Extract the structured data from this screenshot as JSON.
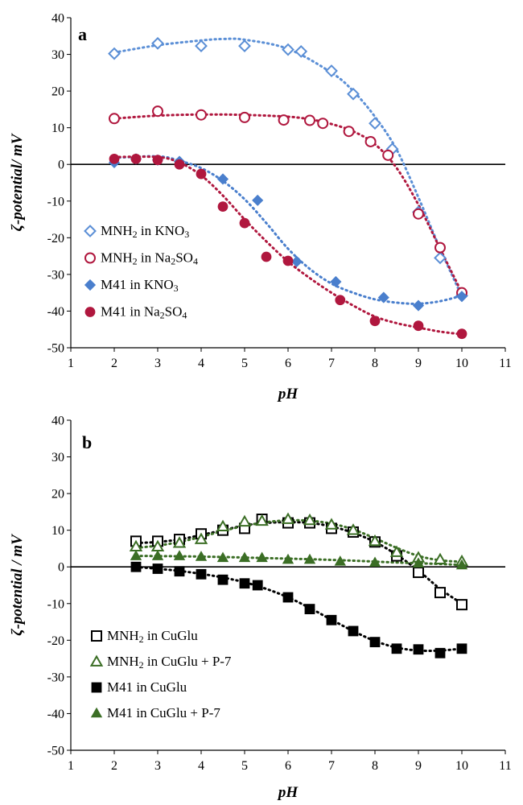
{
  "chart_data": [
    {
      "type": "scatter",
      "panel_label": "a",
      "xlabel": "pH",
      "ylabel": "ζ-potential/ mV",
      "xlim": [
        1,
        11
      ],
      "ylim": [
        -50,
        40
      ],
      "xticks": [
        1,
        2,
        3,
        4,
        5,
        6,
        7,
        8,
        9,
        10,
        11
      ],
      "yticks": [
        -50,
        -40,
        -30,
        -20,
        -10,
        0,
        10,
        20,
        30,
        40
      ],
      "grid": false,
      "legend_position": "bottom-left",
      "series": [
        {
          "name": "MNH2 in KNO3",
          "legend_parts": [
            {
              "t": "MNH"
            },
            {
              "t": "2",
              "sub": true
            },
            {
              "t": " in KNO"
            },
            {
              "t": "3",
              "sub": true
            }
          ],
          "color": "#5b8fd6",
          "marker": "diamond-open",
          "x": [
            2,
            3,
            4,
            5,
            6,
            6.3,
            7,
            7.5,
            8,
            8.4,
            9,
            9.5,
            10
          ],
          "y": [
            30.2,
            33,
            32.3,
            32.3,
            31.3,
            30.8,
            25.5,
            19.2,
            11.2,
            4.2,
            -13,
            -25.5,
            -35.8
          ],
          "trend": {
            "x": [
              2,
              3,
              4,
              4.5,
              5,
              6,
              7,
              7.5,
              8,
              8.5,
              9,
              9.5,
              10
            ],
            "y": [
              30.5,
              32.5,
              33.8,
              34.2,
              34,
              31.5,
              25,
              20,
              13,
              4,
              -9,
              -23,
              -36
            ]
          }
        },
        {
          "name": "MNH2 in Na2SO4",
          "legend_parts": [
            {
              "t": "MNH"
            },
            {
              "t": "2",
              "sub": true
            },
            {
              "t": " in Na"
            },
            {
              "t": "2",
              "sub": true
            },
            {
              "t": "SO"
            },
            {
              "t": "4",
              "sub": true
            }
          ],
          "color": "#b0173e",
          "marker": "circle-open",
          "x": [
            2,
            3,
            4,
            5,
            5.9,
            6.5,
            6.8,
            7.4,
            7.9,
            8.3,
            9,
            9.5,
            10
          ],
          "y": [
            12.5,
            14.5,
            13.5,
            12.8,
            12.1,
            12,
            11.2,
            9,
            6.2,
            2.5,
            -13.5,
            -22.7,
            -35
          ],
          "trend": {
            "x": [
              2,
              3,
              4,
              5,
              6,
              6.5,
              7,
              7.5,
              8,
              8.5,
              9,
              9.5,
              10
            ],
            "y": [
              12.5,
              13.3,
              13.6,
              13.5,
              13,
              12.3,
              11,
              9,
              5.5,
              -1,
              -11,
              -23,
              -35
            ]
          }
        },
        {
          "name": "M41 in KNO3",
          "legend_parts": [
            {
              "t": "M41 in KNO"
            },
            {
              "t": "3",
              "sub": true
            }
          ],
          "color": "#4a7fcd",
          "marker": "diamond",
          "x": [
            2,
            2.5,
            3,
            3.5,
            4.5,
            5.3,
            6.2,
            7.1,
            8.2,
            9,
            10
          ],
          "y": [
            0.5,
            1.5,
            1.2,
            0.8,
            -4,
            -9.8,
            -26.5,
            -32,
            -36.3,
            -38.5,
            -36
          ],
          "trend": {
            "x": [
              2,
              3,
              3.5,
              4,
              4.5,
              5,
              5.5,
              6,
              6.5,
              7,
              7.5,
              8,
              8.5,
              9,
              9.5,
              10
            ],
            "y": [
              1.8,
              2.2,
              1,
              -1,
              -4.5,
              -9.5,
              -16,
              -23,
              -28.5,
              -32.5,
              -35,
              -36.8,
              -37.7,
              -38,
              -37.3,
              -35.8
            ]
          }
        },
        {
          "name": "M41 in Na2SO4",
          "legend_parts": [
            {
              "t": "M41 in Na"
            },
            {
              "t": "2",
              "sub": true
            },
            {
              "t": "SO"
            },
            {
              "t": "4",
              "sub": true
            }
          ],
          "color": "#b0173e",
          "marker": "circle",
          "x": [
            2,
            2.5,
            3,
            3.5,
            4,
            4.5,
            5,
            5.5,
            6,
            7.2,
            8,
            9,
            10
          ],
          "y": [
            1.5,
            1.5,
            1.2,
            0,
            -2.6,
            -11.5,
            -16,
            -25.2,
            -26.3,
            -37,
            -42.7,
            -44,
            -46.2
          ],
          "trend": {
            "x": [
              2,
              3,
              3.5,
              4,
              4.5,
              5,
              5.5,
              6,
              6.5,
              7,
              7.5,
              8,
              8.5,
              9,
              9.5,
              10
            ],
            "y": [
              2,
              2,
              0.5,
              -3,
              -8.5,
              -15,
              -21,
              -26.5,
              -31,
              -35,
              -38.5,
              -41.5,
              -43.3,
              -44.5,
              -45.6,
              -46.3
            ]
          }
        }
      ]
    },
    {
      "type": "scatter",
      "panel_label": "b",
      "xlabel": "pH",
      "ylabel": "ζ-potential / mV",
      "xlim": [
        1,
        11
      ],
      "ylim": [
        -50,
        40
      ],
      "xticks": [
        1,
        2,
        3,
        4,
        5,
        6,
        7,
        8,
        9,
        10,
        11
      ],
      "yticks": [
        -50,
        -40,
        -30,
        -20,
        -10,
        0,
        10,
        20,
        30,
        40
      ],
      "grid": false,
      "legend_position": "bottom-left",
      "series": [
        {
          "name": "MNH2 in CuGlu",
          "legend_parts": [
            {
              "t": "MNH"
            },
            {
              "t": "2",
              "sub": true
            },
            {
              "t": " in CuGlu"
            }
          ],
          "color": "#000000",
          "marker": "square-open",
          "x": [
            2.5,
            3,
            3.5,
            4,
            4.5,
            5,
            5.4,
            6,
            6.5,
            7,
            7.5,
            8,
            8.5,
            9,
            9.5,
            10
          ],
          "y": [
            7,
            7,
            7.5,
            9,
            10,
            10.5,
            13,
            12,
            12,
            10.5,
            9.5,
            6.8,
            3,
            -1.5,
            -7,
            -10.3
          ],
          "trend": {
            "x": [
              2.5,
              3,
              3.5,
              4,
              4.5,
              5,
              5.5,
              6,
              6.5,
              7,
              7.5,
              8,
              8.5,
              9,
              9.5,
              10
            ],
            "y": [
              6.5,
              6.8,
              7.5,
              8.7,
              10,
              11.3,
              12,
              12.2,
              12,
              11,
              9.3,
              6.8,
              3.3,
              -1,
              -6,
              -10
            ]
          }
        },
        {
          "name": "MNH2 in CuGlu + P-7",
          "legend_parts": [
            {
              "t": "MNH"
            },
            {
              "t": "2",
              "sub": true
            },
            {
              "t": " in CuGlu + P-7"
            }
          ],
          "color": "#3b6e25",
          "marker": "triangle-open",
          "x": [
            2.5,
            3,
            3.5,
            4,
            4.5,
            5,
            5.4,
            6,
            6.5,
            7,
            7.5,
            8,
            8.5,
            9,
            9.5,
            10
          ],
          "y": [
            5.5,
            5.5,
            6.5,
            7.5,
            11,
            12.3,
            12.5,
            13,
            12.7,
            11.5,
            10,
            7,
            4,
            2.5,
            2,
            1.5
          ],
          "trend": {
            "x": [
              2.5,
              3,
              3.5,
              4,
              4.5,
              5,
              5.5,
              6,
              6.5,
              7,
              7.5,
              8,
              8.5,
              9,
              9.5,
              10
            ],
            "y": [
              5.2,
              5.8,
              6.8,
              8.2,
              9.8,
              11.2,
              12.2,
              12.7,
              12.6,
              11.8,
              10.2,
              7.8,
              5.2,
              3,
              1.8,
              1.4
            ]
          }
        },
        {
          "name": "M41 in CuGlu",
          "legend_parts": [
            {
              "t": "M41 in CuGlu"
            }
          ],
          "color": "#000000",
          "marker": "square",
          "x": [
            2.5,
            3,
            3.5,
            4,
            4.5,
            5,
            5.3,
            6,
            6.5,
            7,
            7.5,
            8,
            8.5,
            9,
            9.5,
            10
          ],
          "y": [
            0,
            -0.5,
            -1.2,
            -2,
            -3.5,
            -4.5,
            -5,
            -8.3,
            -11.5,
            -14.5,
            -17.5,
            -20.5,
            -22.3,
            -22.5,
            -23.5,
            -22.3
          ],
          "trend": {
            "x": [
              2.5,
              3,
              3.5,
              4,
              4.5,
              5,
              5.5,
              6,
              6.5,
              7,
              7.5,
              8,
              8.5,
              9,
              9.5,
              10
            ],
            "y": [
              0,
              -0.5,
              -1.1,
              -1.9,
              -2.9,
              -4.2,
              -6,
              -8.3,
              -11.2,
              -14.4,
              -17.5,
              -20.2,
              -22,
              -22.8,
              -22.8,
              -22.3
            ]
          }
        },
        {
          "name": "M41 in CuGlu + P-7",
          "legend_parts": [
            {
              "t": "M41 in CuGlu + P-7"
            }
          ],
          "color": "#3b6e25",
          "marker": "triangle",
          "x": [
            2.5,
            3,
            3.5,
            4,
            4.5,
            5,
            5.4,
            6,
            6.5,
            7.2,
            8,
            9,
            10
          ],
          "y": [
            3,
            3,
            3,
            2.8,
            2.5,
            2.5,
            2.5,
            2,
            2,
            1.5,
            1.2,
            1,
            0.5
          ],
          "trend": {
            "x": [
              2.5,
              3.5,
              4.5,
              5.5,
              6.5,
              7.5,
              8.5,
              9.5,
              10
            ],
            "y": [
              3,
              2.9,
              2.7,
              2.4,
              2.1,
              1.7,
              1.2,
              0.8,
              0.5
            ]
          }
        }
      ]
    }
  ]
}
